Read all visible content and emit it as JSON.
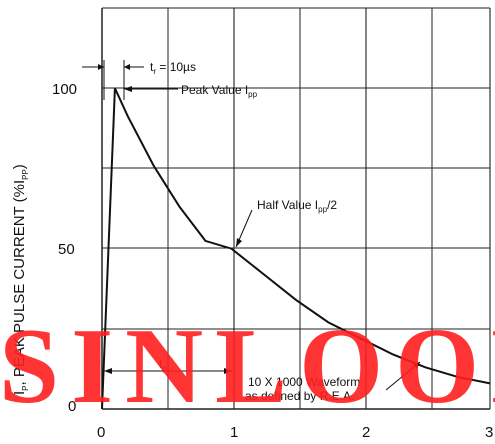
{
  "chart_data": {
    "type": "line",
    "title": "",
    "xlabel": "",
    "ylabel_parts": [
      "I",
      "P",
      ", PEAK PULSE CURRENT (%I",
      "PP",
      ")"
    ],
    "x_ticks": [
      "0",
      "1",
      "2",
      "3"
    ],
    "y_ticks": [
      "0",
      "50",
      "100"
    ],
    "xlim": [
      0,
      3
    ],
    "ylim": [
      0,
      125
    ],
    "grid": true,
    "series": [
      {
        "points": [
          [
            0.0,
            0
          ],
          [
            0.1,
            100
          ],
          [
            0.2,
            91.2
          ],
          [
            0.4,
            75.8
          ],
          [
            0.6,
            63.0
          ],
          [
            0.8,
            52.4
          ],
          [
            1.0,
            50
          ],
          [
            1.25,
            42
          ],
          [
            1.5,
            34
          ],
          [
            1.75,
            27
          ],
          [
            2.0,
            22
          ],
          [
            2.25,
            17
          ],
          [
            2.5,
            13
          ],
          [
            2.75,
            10
          ],
          [
            3.0,
            8
          ]
        ]
      }
    ],
    "annotations": {
      "tr": {
        "prefix": "t",
        "sub": "r",
        "suffix": " = 10µs"
      },
      "peak": {
        "prefix": "Peak Value I",
        "sub": "pp",
        "suffix": ""
      },
      "half": {
        "prefix": "Half Value I",
        "sub": "pp",
        "suffix": "/2"
      },
      "tp": {
        "prefix": "t",
        "sub": "p",
        "suffix": ""
      },
      "waveform_lines": [
        "10 X 1000 Waveform",
        "as defined by R.E.A."
      ]
    }
  },
  "watermark": "SINLOON",
  "colors": {
    "line": "#111111",
    "grid": "#222222",
    "watermark": "#ff1f1f"
  }
}
